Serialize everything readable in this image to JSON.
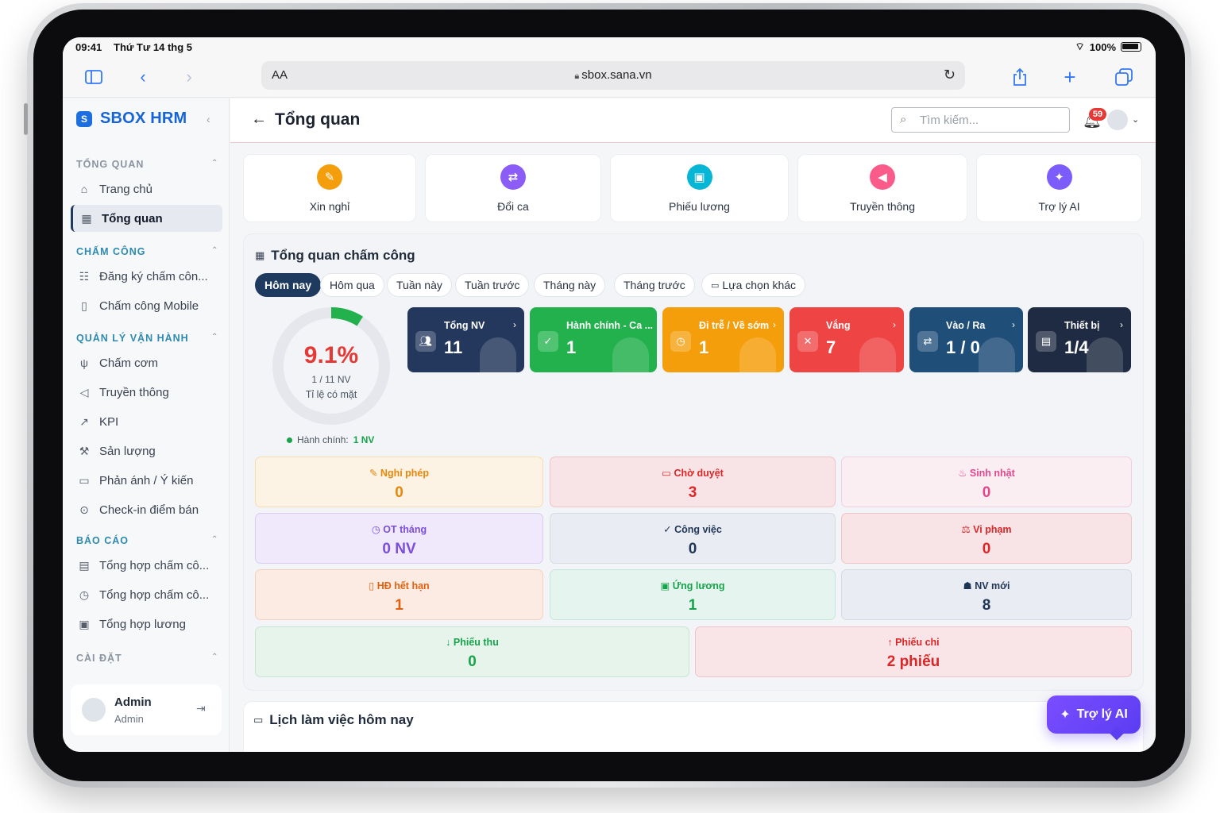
{
  "status": {
    "time": "09:41",
    "date": "Thứ Tư 14 thg 5",
    "battery": "100%"
  },
  "browser": {
    "aa_label": "AA",
    "url": "sbox.sana.vn"
  },
  "sidebar": {
    "brand": "SBOX HRM",
    "sections": [
      {
        "label": "TỔNG QUAN",
        "color": "#8a93a0"
      },
      {
        "label": "CHẤM CÔNG",
        "color": "#2d8ab0"
      },
      {
        "label": "QUẢN LÝ VẬN HÀNH",
        "color": "#2d8ab0"
      },
      {
        "label": "BÁO CÁO",
        "color": "#2d8ab0"
      },
      {
        "label": "CÀI ĐẶT",
        "color": "#8a93a0"
      }
    ],
    "items": [
      {
        "label": "Trang chủ",
        "icon": "home-icon"
      },
      {
        "label": "Tổng quan",
        "icon": "dashboard-icon"
      },
      {
        "label": "Đăng ký chấm côn...",
        "icon": "register-icon"
      },
      {
        "label": "Chấm công Mobile",
        "icon": "mobile-icon"
      },
      {
        "label": "Chấm cơm",
        "icon": "meal-icon"
      },
      {
        "label": "Truyền thông",
        "icon": "megaphone-icon"
      },
      {
        "label": "KPI",
        "icon": "trend-icon"
      },
      {
        "label": "Sản lượng",
        "icon": "production-icon"
      },
      {
        "label": "Phản ánh / Ý kiến",
        "icon": "feedback-icon"
      },
      {
        "label": "Check-in điểm bán",
        "icon": "location-icon"
      },
      {
        "label": "Tổng hợp chấm cô...",
        "icon": "report-icon"
      },
      {
        "label": "Tổng hợp chấm cô...",
        "icon": "clock-icon"
      },
      {
        "label": "Tổng hợp lương",
        "icon": "salary-icon"
      }
    ],
    "user": {
      "name": "Admin",
      "role": "Admin"
    }
  },
  "header": {
    "title": "Tổng quan",
    "search_placeholder": "Tìm kiếm...",
    "notifications": "59"
  },
  "quick_actions": [
    {
      "label": "Xin nghỉ",
      "color": "#f59e0b",
      "icon": "leave-icon"
    },
    {
      "label": "Đổi ca",
      "color": "#8b5cf6",
      "icon": "swap-icon"
    },
    {
      "label": "Phiếu lương",
      "color": "#06b6d4",
      "icon": "payslip-icon"
    },
    {
      "label": "Truyền thông",
      "color": "#fb5b8a",
      "icon": "megaphone-icon"
    },
    {
      "label": "Trợ lý AI",
      "color": "#7c5cfa",
      "icon": "sparkle-icon"
    }
  ],
  "attendance": {
    "title": "Tổng quan chấm công",
    "filters": [
      "Hôm nay",
      "Hôm qua",
      "Tuần này",
      "Tuần trước",
      "Tháng này",
      "Tháng trước",
      "Lựa chọn khác"
    ],
    "active_filter": "Hôm nay",
    "rate": {
      "percent": "9.1%",
      "fraction": 0.091,
      "count": "1 / 11 NV",
      "label": "Tỉ lệ có mặt"
    },
    "legend": {
      "label": "Hành chính:",
      "value": "1 NV"
    },
    "stats": [
      {
        "label": "Tổng NV",
        "value": "11",
        "color": "#24385e"
      },
      {
        "label": "Hành chính - Ca ...",
        "value": "1",
        "color": "#22b14c"
      },
      {
        "label": "Đi trễ / Về sớm",
        "value": "1",
        "color": "#f59e0b"
      },
      {
        "label": "Vắng",
        "value": "7",
        "color": "#ef4444"
      },
      {
        "label": "Vào / Ra",
        "value": "1 / 0",
        "color": "#1f4e79"
      },
      {
        "label": "Thiết bị",
        "value": "1/4",
        "color": "#1f2b42"
      }
    ],
    "tiles": [
      {
        "label": "Nghỉ phép",
        "value": "0",
        "bg": "#fdf3e4",
        "border": "#f6dcb3",
        "fg": "#e8870a"
      },
      {
        "label": "Chờ duyệt",
        "value": "3",
        "bg": "#f8e3e6",
        "border": "#efc4c9",
        "fg": "#dc2626"
      },
      {
        "label": "Sinh nhật",
        "value": "0",
        "bg": "#fbeef3",
        "border": "#f2cfdc",
        "fg": "#e1488b"
      },
      {
        "label": "OT tháng",
        "value": "0 NV",
        "bg": "#efe9fb",
        "border": "#d9cdf4",
        "fg": "#7c4ddb"
      },
      {
        "label": "Công việc",
        "value": "0",
        "bg": "#e9edf3",
        "border": "#d4dbe5",
        "fg": "#1f3556"
      },
      {
        "label": "Vi phạm",
        "value": "0",
        "bg": "#f8e3e6",
        "border": "#efc4c9",
        "fg": "#dc2626"
      },
      {
        "label": "HĐ hết hạn",
        "value": "1",
        "bg": "#fbebe3",
        "border": "#f3d1c1",
        "fg": "#e2620f"
      },
      {
        "label": "Ứng lương",
        "value": "1",
        "bg": "#e6f4ef",
        "border": "#c5e6d8",
        "fg": "#16a34a"
      },
      {
        "label": "NV mới",
        "value": "8",
        "bg": "#e9edf3",
        "border": "#d4dbe5",
        "fg": "#1f3556"
      },
      {
        "label": "Phiếu thu",
        "value": "0",
        "bg": "#e6f4ec",
        "border": "#c5e6d1",
        "fg": "#16a34a"
      },
      {
        "label": "Phiếu chi",
        "value": "2 phiếu",
        "bg": "#f9e4e7",
        "border": "#efc4c9",
        "fg": "#dc2626"
      }
    ]
  },
  "schedule": {
    "title": "Lịch làm việc hôm nay"
  },
  "ai_button": {
    "label": "Trợ lý AI"
  }
}
